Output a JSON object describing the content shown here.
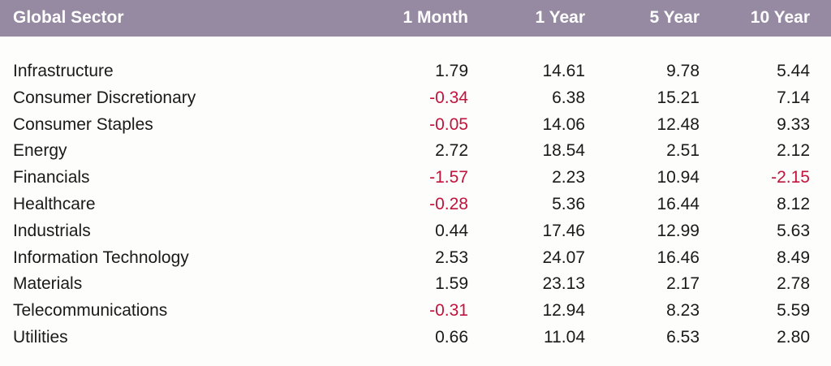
{
  "chart_data": {
    "type": "table",
    "columns": [
      "Global Sector",
      "1 Month",
      "1 Year",
      "5 Year",
      "10 Year"
    ],
    "rows": [
      {
        "sector": "Infrastructure",
        "m1": "1.79",
        "y1": "14.61",
        "y5": "9.78",
        "y10": "5.44"
      },
      {
        "sector": "Consumer Discretionary",
        "m1": "-0.34",
        "y1": "6.38",
        "y5": "15.21",
        "y10": "7.14"
      },
      {
        "sector": "Consumer Staples",
        "m1": "-0.05",
        "y1": "14.06",
        "y5": "12.48",
        "y10": "9.33"
      },
      {
        "sector": "Energy",
        "m1": "2.72",
        "y1": "18.54",
        "y5": "2.51",
        "y10": "2.12"
      },
      {
        "sector": "Financials",
        "m1": "-1.57",
        "y1": "2.23",
        "y5": "10.94",
        "y10": "-2.15"
      },
      {
        "sector": "Healthcare",
        "m1": "-0.28",
        "y1": "5.36",
        "y5": "16.44",
        "y10": "8.12"
      },
      {
        "sector": "Industrials",
        "m1": "0.44",
        "y1": "17.46",
        "y5": "12.99",
        "y10": "5.63"
      },
      {
        "sector": "Information Technology",
        "m1": "2.53",
        "y1": "24.07",
        "y5": "16.46",
        "y10": "8.49"
      },
      {
        "sector": "Materials",
        "m1": "1.59",
        "y1": "23.13",
        "y5": "2.17",
        "y10": "2.78"
      },
      {
        "sector": "Telecommunications",
        "m1": "-0.31",
        "y1": "12.94",
        "y5": "8.23",
        "y10": "5.59"
      },
      {
        "sector": "Utilities",
        "m1": "0.66",
        "y1": "11.04",
        "y5": "6.53",
        "y10": "2.80"
      }
    ]
  },
  "colors": {
    "header_background": "#968aa2",
    "header_text": "#ffffff",
    "negative": "#c0143c",
    "text": "#1a1a1a"
  }
}
